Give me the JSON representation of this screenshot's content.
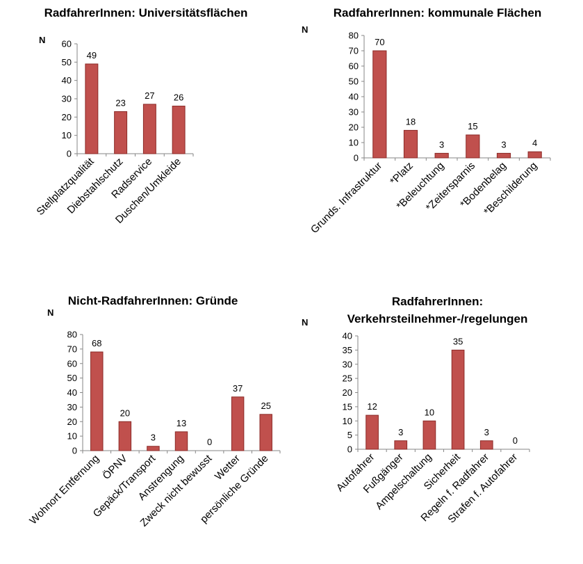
{
  "bar_color": "#c0504d",
  "bar_edge": "#8b2a27",
  "axis_color": "#868686",
  "chart_data": [
    {
      "type": "bar",
      "title": "RadfahrerInnen: Universitätsflächen",
      "ylabel": "N",
      "ylim": [
        0,
        60
      ],
      "yticks": [
        0,
        10,
        20,
        30,
        40,
        50,
        60
      ],
      "categories": [
        "Stellplatzqualität",
        "Diebstahlschutz",
        "Radservice",
        "Duschen/Umkleide"
      ],
      "values": [
        49,
        23,
        27,
        26
      ]
    },
    {
      "type": "bar",
      "title": "RadfahrerInnen: kommunale Flächen",
      "ylabel": "N",
      "ylim": [
        0,
        80
      ],
      "yticks": [
        0,
        10,
        20,
        30,
        40,
        50,
        60,
        70,
        80
      ],
      "categories": [
        "Grunds. Infrastruktur",
        "*Platz",
        "*Beleuchtung",
        "*Zeitersparnis",
        "*Bodenbelag",
        "*Beschilderung"
      ],
      "values": [
        70,
        18,
        3,
        15,
        3,
        4
      ]
    },
    {
      "type": "bar",
      "title": "Nicht-RadfahrerInnen: Gründe",
      "ylabel": "N",
      "ylim": [
        0,
        80
      ],
      "yticks": [
        0,
        10,
        20,
        30,
        40,
        50,
        60,
        70,
        80
      ],
      "categories": [
        "Wohnort Entfernung",
        "ÖPNV",
        "Gepäck/Transport",
        "Anstrengung",
        "Zweck nicht bewusst",
        "Wetter",
        "persönliche Gründe"
      ],
      "values": [
        68,
        20,
        3,
        13,
        0,
        37,
        25
      ]
    },
    {
      "type": "bar",
      "title": "RadfahrerInnen: Verkehrsteilnehmer-/regelungen",
      "title_lines": [
        "RadfahrerInnen:",
        "Verkehrsteilnehmer-/regelungen"
      ],
      "ylabel": "N",
      "ylim": [
        0,
        40
      ],
      "yticks": [
        0,
        5,
        10,
        15,
        20,
        25,
        30,
        35,
        40
      ],
      "categories": [
        "Autofahrer",
        "Fußgänger",
        "Ampelschaltung",
        "Sicherheit",
        "Regeln f. Radfahrer",
        "Strafen f. Autofahrer"
      ],
      "values": [
        12,
        3,
        10,
        35,
        3,
        0
      ]
    }
  ]
}
